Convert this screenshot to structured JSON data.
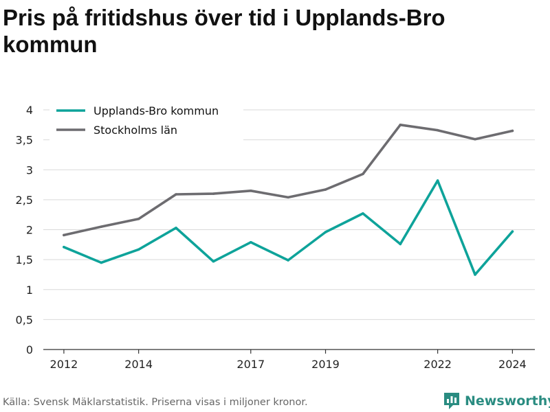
{
  "title": "Pris på fritidshus över tid i Upplands-Bro kommun",
  "footer": {
    "source": "Källa: Svensk Mäklarstatistik. Priserna visas i miljoner kronor.",
    "brand": "Newsworthy"
  },
  "colors": {
    "upplands_bro": "#0ea39a",
    "stockholm": "#6d6c70",
    "grid": "#d9d9d9",
    "axis": "#333333",
    "brand": "#2a8c81"
  },
  "chart_data": {
    "type": "line",
    "title": "Pris på fritidshus över tid i Upplands-Bro kommun",
    "x": [
      2012,
      2013,
      2014,
      2015,
      2016,
      2017,
      2018,
      2019,
      2020,
      2021,
      2022,
      2023,
      2024
    ],
    "x_ticks": [
      2012,
      2014,
      2017,
      2019,
      2022,
      2024
    ],
    "y_ticks": [
      0,
      0.5,
      1,
      1.5,
      2,
      2.5,
      3,
      3.5,
      4
    ],
    "y_tick_labels": [
      "0",
      "0,5",
      "1",
      "1,5",
      "2",
      "2,5",
      "3",
      "3,5",
      "4"
    ],
    "xlim": [
      2011.45,
      2024.6
    ],
    "ylim": [
      0,
      4
    ],
    "grid": "horizontal",
    "legend_position": "top-left",
    "series": [
      {
        "name": "Upplands-Bro kommun",
        "color": "#0ea39a",
        "values": [
          1.71,
          1.45,
          1.67,
          2.03,
          1.47,
          1.79,
          1.49,
          1.96,
          2.27,
          1.76,
          2.82,
          1.25,
          1.97
        ]
      },
      {
        "name": "Stockholms län",
        "color": "#6d6c70",
        "values": [
          1.91,
          2.05,
          2.18,
          2.59,
          2.6,
          2.65,
          2.54,
          2.67,
          2.93,
          3.75,
          3.66,
          3.51,
          3.65
        ]
      }
    ]
  }
}
